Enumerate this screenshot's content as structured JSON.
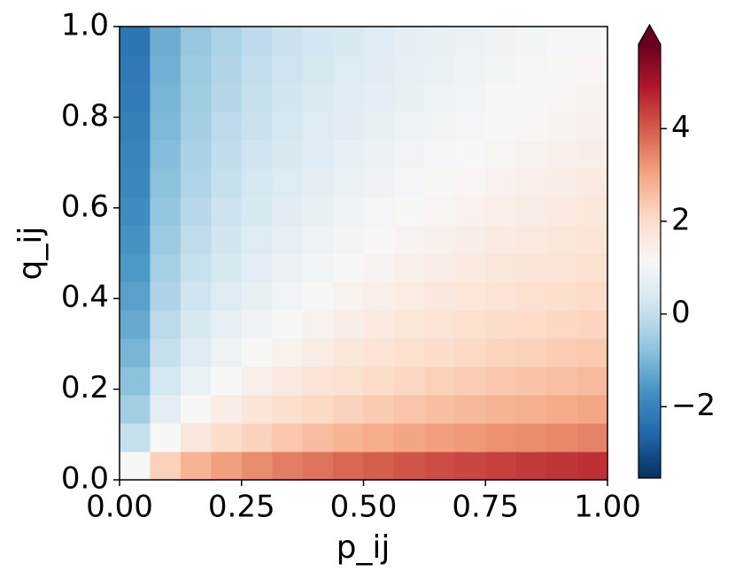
{
  "chart_data": {
    "type": "heatmap",
    "xlabel": "p_ij",
    "ylabel": "q_ij",
    "x": [
      0.03125,
      0.09375,
      0.15625,
      0.21875,
      0.28125,
      0.34375,
      0.40625,
      0.46875,
      0.53125,
      0.59375,
      0.65625,
      0.71875,
      0.78125,
      0.84375,
      0.90625,
      0.96875
    ],
    "y": [
      0.03125,
      0.09375,
      0.15625,
      0.21875,
      0.28125,
      0.34375,
      0.40625,
      0.46875,
      0.53125,
      0.59375,
      0.65625,
      0.71875,
      0.78125,
      0.84375,
      0.90625,
      0.96875
    ],
    "values": [
      [
        1.15,
        2.25,
        2.76,
        3.09,
        3.34,
        3.54,
        3.71,
        3.85,
        3.98,
        4.09,
        4.19,
        4.28,
        4.37,
        4.44,
        4.51,
        4.58
      ],
      [
        0.05,
        1.15,
        1.66,
        1.99,
        2.24,
        2.44,
        2.61,
        2.75,
        2.88,
        2.99,
        3.09,
        3.18,
        3.27,
        3.34,
        3.41,
        3.48
      ],
      [
        -0.46,
        0.64,
        1.15,
        1.48,
        1.73,
        1.93,
        2.1,
        2.24,
        2.37,
        2.48,
        2.58,
        2.67,
        2.76,
        2.83,
        2.9,
        2.97
      ],
      [
        -0.79,
        0.31,
        0.82,
        1.15,
        1.4,
        1.6,
        1.77,
        1.91,
        2.04,
        2.15,
        2.25,
        2.34,
        2.43,
        2.5,
        2.57,
        2.64
      ],
      [
        -1.04,
        0.06,
        0.57,
        0.9,
        1.15,
        1.35,
        1.52,
        1.66,
        1.79,
        1.9,
        2.0,
        2.09,
        2.18,
        2.25,
        2.32,
        2.39
      ],
      [
        -1.24,
        -0.14,
        0.37,
        0.7,
        0.95,
        1.15,
        1.32,
        1.46,
        1.59,
        1.7,
        1.8,
        1.89,
        1.98,
        2.05,
        2.12,
        2.19
      ],
      [
        -1.41,
        -0.31,
        0.2,
        0.53,
        0.78,
        0.98,
        1.15,
        1.29,
        1.42,
        1.53,
        1.63,
        1.72,
        1.81,
        1.88,
        1.95,
        2.02
      ],
      [
        -1.55,
        -0.45,
        0.06,
        0.39,
        0.64,
        0.84,
        1.01,
        1.15,
        1.28,
        1.39,
        1.49,
        1.58,
        1.67,
        1.74,
        1.81,
        1.88
      ],
      [
        -1.68,
        -0.58,
        -0.07,
        0.26,
        0.51,
        0.71,
        0.88,
        1.02,
        1.15,
        1.26,
        1.36,
        1.45,
        1.54,
        1.61,
        1.68,
        1.75
      ],
      [
        -1.79,
        -0.69,
        -0.18,
        0.15,
        0.4,
        0.6,
        0.77,
        0.91,
        1.04,
        1.15,
        1.25,
        1.34,
        1.43,
        1.5,
        1.57,
        1.64
      ],
      [
        -1.89,
        -0.79,
        -0.28,
        0.05,
        0.3,
        0.5,
        0.67,
        0.81,
        0.94,
        1.05,
        1.15,
        1.24,
        1.33,
        1.4,
        1.47,
        1.54
      ],
      [
        -1.98,
        -0.88,
        -0.37,
        -0.04,
        0.21,
        0.41,
        0.58,
        0.72,
        0.85,
        0.96,
        1.06,
        1.15,
        1.24,
        1.31,
        1.38,
        1.45
      ],
      [
        -2.07,
        -0.97,
        -0.46,
        -0.13,
        0.12,
        0.32,
        0.49,
        0.63,
        0.76,
        0.87,
        0.97,
        1.06,
        1.15,
        1.22,
        1.29,
        1.36
      ],
      [
        -2.14,
        -1.04,
        -0.53,
        -0.2,
        0.05,
        0.25,
        0.42,
        0.56,
        0.69,
        0.8,
        0.9,
        0.99,
        1.08,
        1.15,
        1.22,
        1.29
      ],
      [
        -2.21,
        -1.11,
        -0.6,
        -0.27,
        -0.02,
        0.18,
        0.35,
        0.49,
        0.62,
        0.73,
        0.83,
        0.92,
        1.01,
        1.08,
        1.15,
        1.22
      ],
      [
        -2.28,
        -1.18,
        -0.67,
        -0.34,
        -0.09,
        0.11,
        0.28,
        0.41,
        0.55,
        0.66,
        0.76,
        0.85,
        0.94,
        1.01,
        1.08,
        1.15
      ]
    ],
    "xlim": [
      0,
      1
    ],
    "ylim": [
      0,
      1
    ],
    "xticks": [
      {
        "value": 0,
        "label": "0.00"
      },
      {
        "value": 0.25,
        "label": "0.25"
      },
      {
        "value": 0.5,
        "label": "0.50"
      },
      {
        "value": 0.75,
        "label": "0.75"
      },
      {
        "value": 1,
        "label": "1.00"
      }
    ],
    "yticks": [
      {
        "value": 0,
        "label": "0.0"
      },
      {
        "value": 0.2,
        "label": "0.2"
      },
      {
        "value": 0.4,
        "label": "0.4"
      },
      {
        "value": 0.6,
        "label": "0.6"
      },
      {
        "value": 0.8,
        "label": "0.8"
      },
      {
        "value": 1,
        "label": "1.0"
      }
    ],
    "colormap": [
      "#053061",
      "#2166ac",
      "#4393c3",
      "#92c5de",
      "#d1e5f0",
      "#f7f7f7",
      "#fddbc7",
      "#f4a582",
      "#d6604d",
      "#b2182b",
      "#67001f"
    ],
    "colorbar": {
      "lim": [
        -3.54,
        5.82
      ],
      "extend": "max",
      "ticks": [
        {
          "value": -2,
          "label": "−2"
        },
        0,
        2,
        4
      ]
    }
  }
}
